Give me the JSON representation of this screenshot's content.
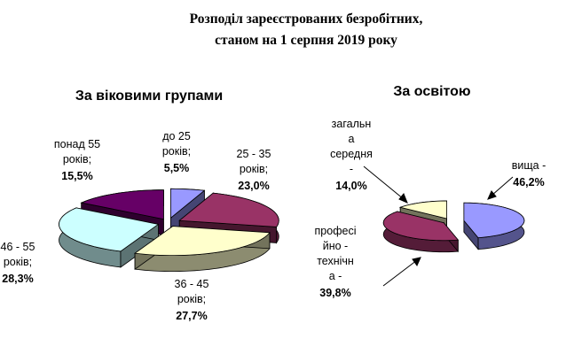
{
  "title_line1": "Розподіл зареєстрованих безробітних,",
  "title_line2": "станом на 1  серпня 2019 року",
  "chart_data": [
    {
      "type": "pie",
      "title": "За віковими групами",
      "slices": [
        {
          "label_lines": [
            "до 25",
            "років;"
          ],
          "pct_text": "5,5%",
          "value": 5.5,
          "color": "#9999ff"
        },
        {
          "label_lines": [
            "25 - 35",
            "років;"
          ],
          "pct_text": "23,0%",
          "value": 23.0,
          "color": "#993366"
        },
        {
          "label_lines": [
            "36 - 45",
            "років;"
          ],
          "pct_text": "27,7%",
          "value": 27.7,
          "color": "#ffffcc"
        },
        {
          "label_lines": [
            "46 - 55",
            "років;"
          ],
          "pct_text": "28,3%",
          "value": 28.3,
          "color": "#ccffff"
        },
        {
          "label_lines": [
            "понад 55",
            "років;"
          ],
          "pct_text": "15,5%",
          "value": 15.5,
          "color": "#660066"
        }
      ]
    },
    {
      "type": "pie",
      "title": "За освітою",
      "slices": [
        {
          "label_lines": [
            "вища -"
          ],
          "pct_text": "46,2%",
          "value": 46.2,
          "color": "#9999ff"
        },
        {
          "label_lines": [
            "професі",
            "йно -",
            "технічн",
            "а -"
          ],
          "pct_text": "39,8%",
          "value": 39.8,
          "color": "#993366"
        },
        {
          "label_lines": [
            "загальн",
            "а",
            "середня",
            "-"
          ],
          "pct_text": "14,0%",
          "value": 14.0,
          "color": "#ffffcc"
        }
      ]
    }
  ]
}
